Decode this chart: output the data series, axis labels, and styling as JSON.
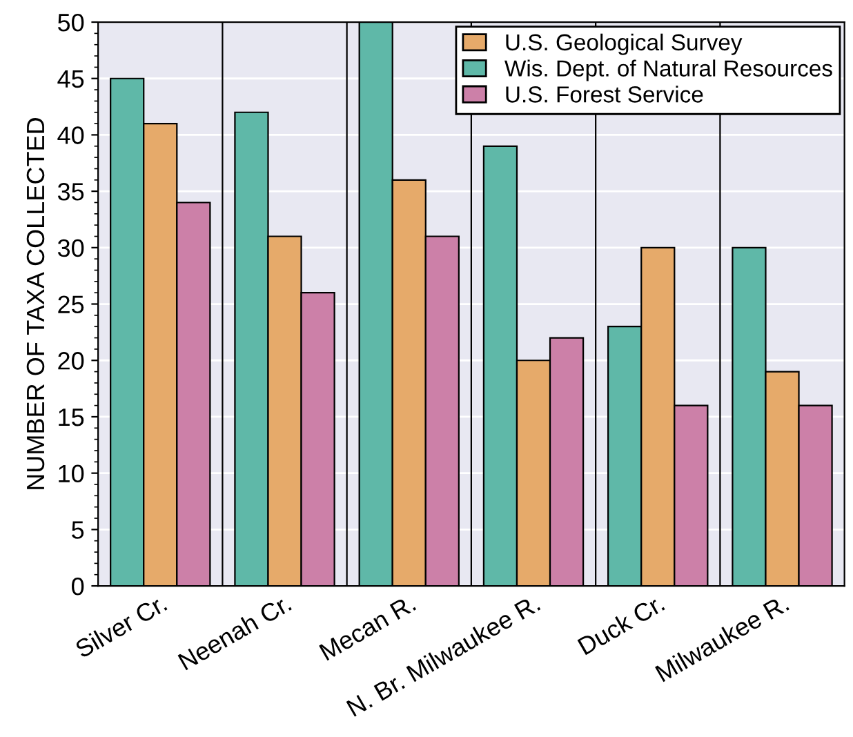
{
  "chart_data": {
    "type": "bar",
    "ylabel": "NUMBER OF TAXA COLLECTED",
    "categories": [
      "Silver Cr.",
      "Neenah Cr.",
      "Mecan R.",
      "N. Br. Milwaukee R.",
      "Duck Cr.",
      "Milwaukee R."
    ],
    "series": [
      {
        "name": "Wis. Dept. of Natural Resources",
        "color": "#5fb8a8",
        "values": [
          45,
          42,
          50,
          39,
          23,
          30
        ]
      },
      {
        "name": "U.S. Geological Survey",
        "color": "#e6aa6a",
        "values": [
          41,
          31,
          36,
          20,
          30,
          19
        ]
      },
      {
        "name": "U.S. Forest Service",
        "color": "#cc80a8",
        "values": [
          34,
          26,
          31,
          22,
          16,
          16
        ]
      }
    ],
    "ylim": [
      0,
      50
    ],
    "yticks": [
      0,
      5,
      10,
      15,
      20,
      25,
      30,
      35,
      40,
      45,
      50
    ],
    "grid": true,
    "legend": "top right"
  }
}
